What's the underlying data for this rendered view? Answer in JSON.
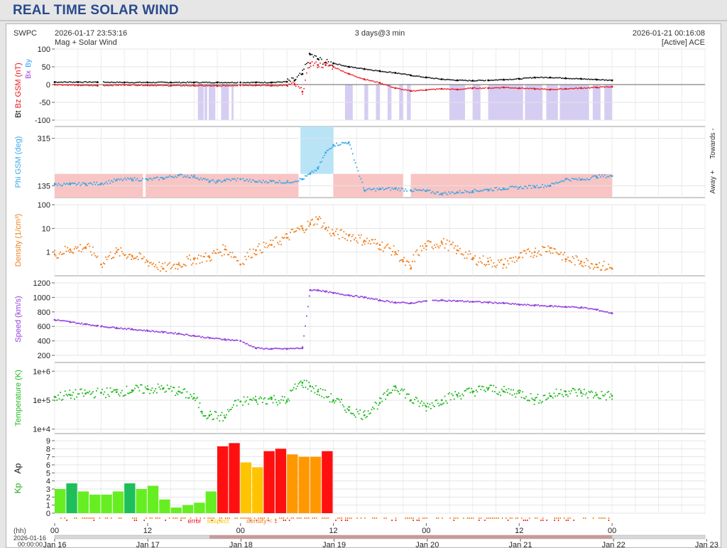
{
  "page_title": "REAL TIME SOLAR WIND",
  "header": {
    "source": "SWPC",
    "start_time": "2026-01-17 23:53:16",
    "span": "3 days@3 min",
    "end_time": "2026-01-21 00:16:08",
    "subtitle": "Mag + Solar Wind",
    "spacecraft": "[Active] ACE"
  },
  "colors": {
    "bt": "#000000",
    "bz": "#e8141c",
    "by": "#1ea0ff",
    "bx": "#9933dd",
    "phi": "#3aa7e6",
    "phi_away_band": "#f9c4c4",
    "phi_towards_band": "#b8e4f6",
    "density": "#f07f1e",
    "speed": "#9340dc",
    "temperature": "#1eb81e",
    "mag_shade": "#d6cdf2",
    "kp_low": "#66ee22",
    "kp_med": "#1ebf5a",
    "kp_storm_g1": "#ffc400",
    "kp_storm_g2": "#ff9800",
    "kp_storm_g3": "#ff1010",
    "legend_error": "#e8141c",
    "legend_suspect": "#ffc400",
    "legend_density": "#f07f1e"
  },
  "chart_data": [
    {
      "type": "line",
      "id": "mag",
      "ylabel_parts": [
        "Bt",
        "Bz",
        "GSM (nT)",
        "Bx",
        "By"
      ],
      "ylim": [
        -100,
        100
      ],
      "yticks": [
        -100,
        -50,
        0,
        50,
        100
      ],
      "x_unit": "hours since 2026-01-16 00:00",
      "series": [
        {
          "name": "Bt",
          "x": [
            0,
            6,
            11,
            18,
            24,
            30,
            36,
            42,
            48,
            52,
            56,
            60,
            62,
            64,
            66,
            68,
            70,
            72,
            76,
            80,
            84,
            88,
            92,
            96,
            100,
            104,
            108,
            112,
            116,
            120,
            124,
            128,
            132,
            136,
            140,
            144
          ],
          "values": [
            7,
            7,
            7,
            6,
            6,
            6,
            6,
            6,
            6,
            6,
            6,
            8,
            12,
            30,
            85,
            72,
            62,
            60,
            50,
            44,
            38,
            33,
            26,
            20,
            15,
            12,
            11,
            12,
            14,
            16,
            20,
            20,
            18,
            16,
            14,
            12
          ]
        },
        {
          "name": "Bz",
          "x": [
            0,
            6,
            11,
            18,
            24,
            30,
            36,
            42,
            48,
            52,
            56,
            60,
            62,
            64,
            66,
            68,
            70,
            72,
            76,
            80,
            84,
            88,
            92,
            96,
            100,
            104,
            108,
            112,
            116,
            120,
            124,
            128,
            132,
            136,
            140,
            144
          ],
          "values": [
            0,
            -2,
            -3,
            -1,
            -2,
            -3,
            -3,
            -4,
            -2,
            -2,
            -3,
            -2,
            0,
            -20,
            60,
            55,
            55,
            50,
            30,
            15,
            5,
            -10,
            -18,
            -15,
            -12,
            -14,
            -10,
            -10,
            -8,
            -10,
            -12,
            -14,
            -12,
            -10,
            -8,
            -6
          ]
        }
      ],
      "gaps": [
        [
          11.2,
          12.5
        ],
        [
          47.6,
          48.4
        ],
        [
          111.3,
          112.1
        ]
      ],
      "shaded_x": [
        [
          37,
          38.5
        ],
        [
          38.7,
          39.4
        ],
        [
          39.8,
          41.5
        ],
        [
          43,
          45
        ],
        [
          45.7,
          46.2
        ],
        [
          75,
          77
        ],
        [
          80,
          81
        ],
        [
          83,
          84
        ],
        [
          86,
          87
        ],
        [
          89,
          90
        ],
        [
          91,
          92
        ],
        [
          102,
          106
        ],
        [
          108,
          110
        ],
        [
          112,
          121
        ],
        [
          121.5,
          126
        ],
        [
          127,
          130
        ],
        [
          130.5,
          138
        ],
        [
          139,
          141
        ],
        [
          142,
          144
        ]
      ]
    },
    {
      "type": "scatter",
      "id": "phi",
      "ylabel": "Phi GSM (deg)",
      "right_labels": [
        "Away +",
        "Towards -"
      ],
      "ylim": [
        90,
        360
      ],
      "yticks": [
        135,
        315
      ],
      "x": [
        0,
        4,
        8,
        12,
        16,
        20,
        24,
        28,
        32,
        36,
        40,
        42,
        44,
        48,
        52,
        56,
        60,
        64,
        66,
        68,
        70,
        72,
        76,
        80,
        84,
        88,
        92,
        96,
        100,
        104,
        108,
        112,
        116,
        120,
        124,
        128,
        132,
        136,
        140,
        144
      ],
      "values": [
        140,
        140,
        142,
        143,
        156,
        160,
        158,
        164,
        174,
        170,
        152,
        150,
        156,
        160,
        150,
        152,
        148,
        160,
        180,
        200,
        260,
        290,
        300,
        118,
        122,
        124,
        118,
        115,
        105,
        110,
        115,
        120,
        125,
        128,
        132,
        136,
        160,
        158,
        170,
        172
      ]
    },
    {
      "type": "scatter",
      "id": "density",
      "ylabel": "Density (1/cm³)",
      "yscale": "log",
      "ylim": [
        0.1,
        100
      ],
      "yticks": [
        1,
        10,
        100
      ],
      "x": [
        0,
        4,
        8,
        12,
        16,
        20,
        24,
        28,
        32,
        36,
        40,
        44,
        48,
        52,
        56,
        60,
        64,
        66,
        68,
        70,
        72,
        76,
        80,
        84,
        88,
        90,
        92,
        96,
        100,
        104,
        108,
        112,
        116,
        120,
        124,
        128,
        132,
        136,
        140,
        144
      ],
      "values": [
        0.8,
        1.3,
        1.6,
        0.3,
        1.0,
        0.7,
        0.4,
        0.2,
        0.3,
        0.5,
        0.6,
        1.3,
        0.3,
        1.2,
        2.0,
        4.0,
        10,
        15,
        25,
        10,
        6,
        5,
        3,
        2,
        1.0,
        0.4,
        0.2,
        1.8,
        2.5,
        1.2,
        0.5,
        0.4,
        0.3,
        0.6,
        1.0,
        1.5,
        0.5,
        0.4,
        0.3,
        0.2
      ]
    },
    {
      "type": "scatter",
      "id": "speed",
      "ylabel": "Speed (km/s)",
      "ylim": [
        200,
        1200
      ],
      "yticks": [
        200,
        400,
        600,
        800,
        1000,
        1200
      ],
      "x": [
        0,
        4,
        8,
        11,
        12,
        16,
        20,
        24,
        28,
        32,
        36,
        40,
        44,
        48,
        52,
        56,
        60,
        64,
        66,
        68,
        70,
        72,
        76,
        80,
        84,
        88,
        92,
        96,
        100,
        104,
        108,
        112,
        116,
        120,
        124,
        128,
        132,
        136,
        140,
        144
      ],
      "values": [
        690,
        660,
        630,
        610,
        600,
        580,
        560,
        540,
        520,
        500,
        470,
        440,
        420,
        400,
        300,
        290,
        290,
        300,
        1100,
        1100,
        1080,
        1060,
        1030,
        1000,
        960,
        930,
        920,
        950,
        960,
        950,
        940,
        930,
        920,
        900,
        890,
        880,
        870,
        860,
        830,
        780
      ]
    },
    {
      "type": "scatter",
      "id": "temperature",
      "ylabel": "Temperature (K)",
      "yscale": "log",
      "ylim": [
        7000,
        2000000
      ],
      "yticks": [
        "1e+4",
        "1e+5",
        "1e+6"
      ],
      "x": [
        0,
        4,
        8,
        12,
        16,
        20,
        24,
        28,
        32,
        36,
        38,
        40,
        44,
        48,
        52,
        56,
        60,
        64,
        66,
        68,
        72,
        76,
        80,
        84,
        86,
        88,
        92,
        96,
        100,
        104,
        108,
        112,
        116,
        120,
        124,
        128,
        132,
        136,
        140,
        144
      ],
      "values": [
        130000,
        150000,
        170000,
        180000,
        190000,
        220000,
        240000,
        250000,
        200000,
        120000,
        40000,
        30000,
        25000,
        90000,
        100000,
        110000,
        90000,
        400000,
        300000,
        200000,
        100000,
        45000,
        30000,
        80000,
        150000,
        300000,
        100000,
        60000,
        100000,
        150000,
        200000,
        250000,
        200000,
        180000,
        100000,
        140000,
        200000,
        180000,
        150000,
        140000
      ]
    },
    {
      "type": "bar",
      "id": "kp",
      "ylabel_parts": [
        "Kp",
        "Ap"
      ],
      "ylim": [
        0,
        9
      ],
      "yticks": [
        0,
        1,
        2,
        3,
        4,
        5,
        6,
        7,
        8,
        9
      ],
      "bar_width_hours": 3,
      "values": [
        3.0,
        3.7,
        2.7,
        2.3,
        2.3,
        2.7,
        3.7,
        3.0,
        3.4,
        1.7,
        0.7,
        1.0,
        1.3,
        2.7,
        8.3,
        8.7,
        6.3,
        5.7,
        7.7,
        8.0,
        7.3,
        7.0,
        7.0,
        7.7
      ],
      "legend": [
        "error",
        "suspect",
        "density < 1"
      ]
    }
  ],
  "x_axis": {
    "unit_label": "(hh)",
    "start_label": "2026-01-16",
    "start_time": "00:00:00",
    "hour_ticks": [
      "00",
      "12",
      "00",
      "12",
      "00",
      "12",
      "00"
    ],
    "day_ticks": [
      "Jan 16",
      "Jan 17",
      "Jan 18",
      "Jan 19",
      "Jan 20",
      "Jan 21",
      "Jan 22",
      "Jan 23"
    ]
  }
}
